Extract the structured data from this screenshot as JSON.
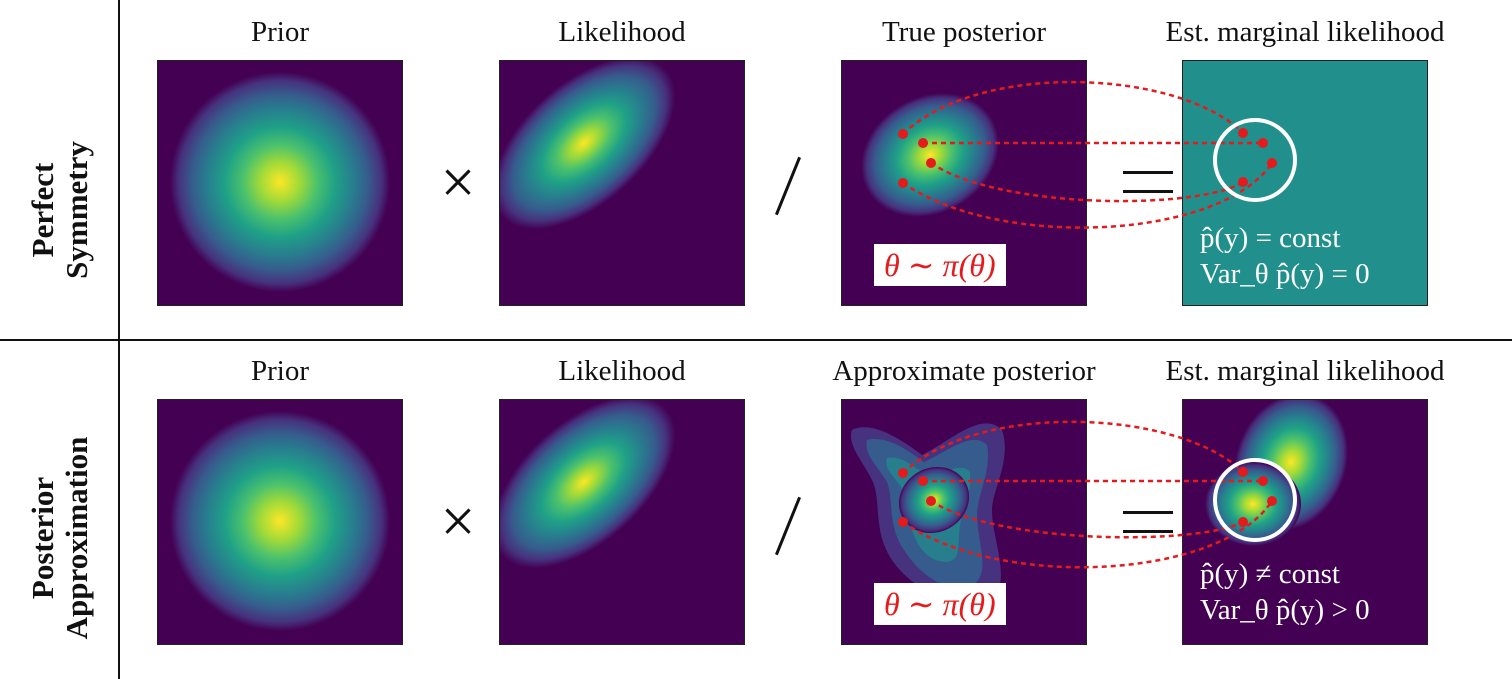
{
  "rows": [
    {
      "label_line1": "Perfect",
      "label_line2": "Symmetry",
      "titles": [
        "Prior",
        "Likelihood",
        "True posterior",
        "Est. marginal likelihood"
      ],
      "theta_box": "θ ∼ π(θ)",
      "ml_line1": "p̂(y) = const",
      "ml_line2": "Var_θ p̂(y) = 0"
    },
    {
      "label_line1": "Posterior",
      "label_line2": "Approximation",
      "titles": [
        "Prior",
        "Likelihood",
        "Approximate posterior",
        "Est. marginal likelihood"
      ],
      "theta_box": "θ ∼ π(θ)",
      "ml_line1": "p̂(y) ≠ const",
      "ml_line2": "Var_θ p̂(y) > 0"
    }
  ],
  "operators": {
    "times": "×"
  },
  "colors": {
    "background_dark": "#440154",
    "teal": "#21908c",
    "yellow": "#fde725",
    "dashed": "#e41a1c",
    "circle": "#ffffff"
  }
}
